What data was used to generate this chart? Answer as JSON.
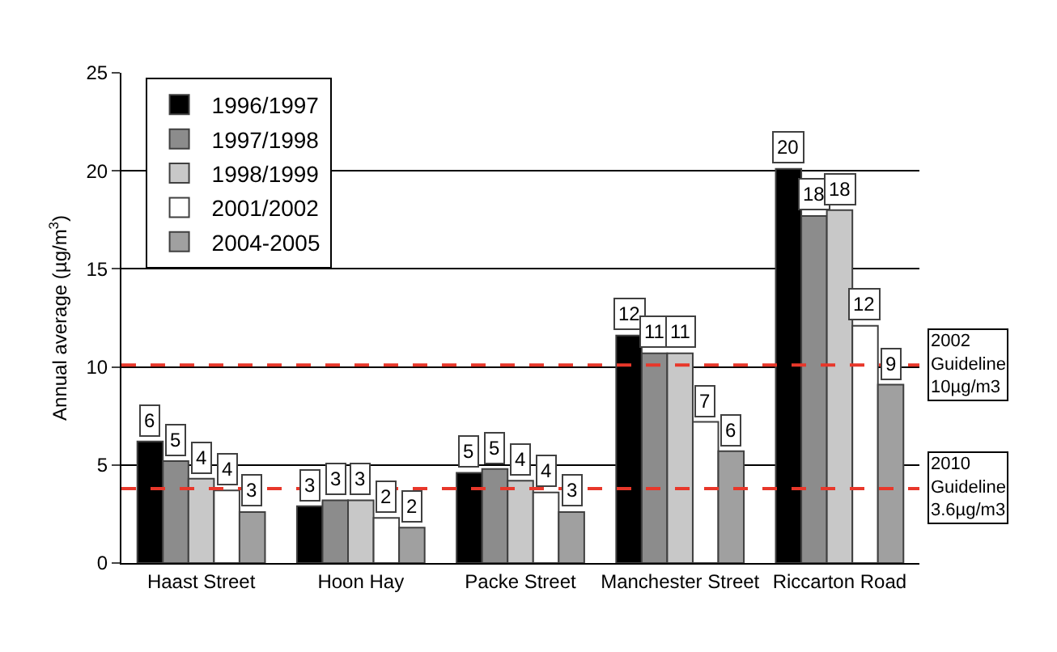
{
  "chart_data": {
    "type": "bar",
    "ylabel": "Annual average (µg/m$^{3}$)",
    "categories": [
      "Haast Street",
      "Hoon Hay",
      "Packe Street",
      "Manchester Street",
      "Riccarton Road"
    ],
    "series": [
      {
        "name": "1996/1997",
        "color": "#000000",
        "values": [
          6.2,
          2.9,
          4.6,
          11.6,
          20.1
        ],
        "value_labels": [
          "6",
          "3",
          "5",
          "12",
          "20"
        ]
      },
      {
        "name": "1997/1998",
        "color": "#8c8c8c",
        "values": [
          5.2,
          3.2,
          4.8,
          10.7,
          17.7
        ],
        "value_labels": [
          "5",
          "3",
          "5",
          "11",
          "18"
        ]
      },
      {
        "name": "1998/1999",
        "color": "#c8c8c8",
        "values": [
          4.3,
          3.2,
          4.2,
          10.7,
          18.0
        ],
        "value_labels": [
          "4",
          "3",
          "4",
          "11",
          "18"
        ]
      },
      {
        "name": "2001/2002",
        "color": "#ffffff",
        "values": [
          3.7,
          2.3,
          3.6,
          7.2,
          12.1
        ],
        "value_labels": [
          "4",
          "2",
          "4",
          "7",
          "12"
        ]
      },
      {
        "name": "2004-2005",
        "color": "#a0a0a0",
        "values": [
          2.6,
          1.8,
          2.6,
          5.7,
          9.1
        ],
        "value_labels": [
          "3",
          "2",
          "3",
          "6",
          "9"
        ]
      }
    ],
    "ylim": [
      0,
      25
    ],
    "yticks": [
      0,
      5,
      10,
      15,
      20,
      25
    ],
    "grid": "y",
    "legend": "top left",
    "ref_lines": [
      {
        "axis": "y",
        "value": 10.1,
        "label": "2002 Guideline 10µg/m3",
        "color": "#e8372a",
        "line_style": "dashed"
      },
      {
        "axis": "y",
        "value": 3.8,
        "label": "2010 Guideline 3.6µg/m3",
        "color": "#e8372a",
        "line_style": "dashed"
      }
    ]
  }
}
